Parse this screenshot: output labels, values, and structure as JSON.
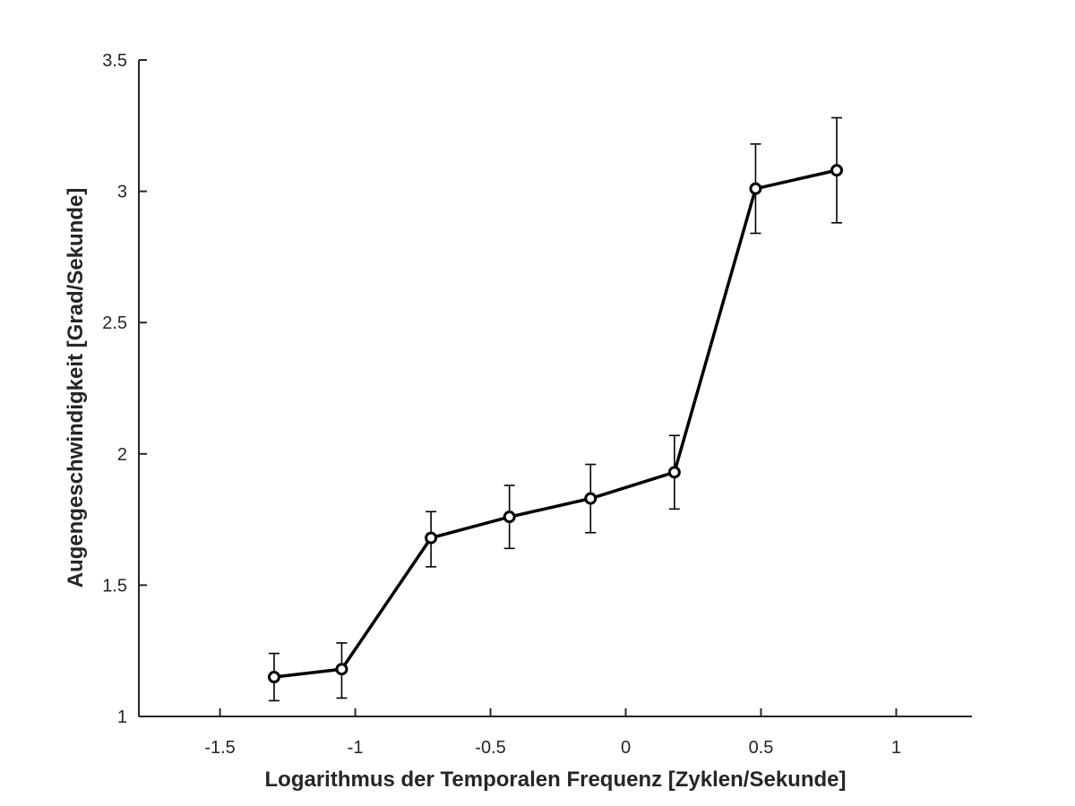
{
  "chart_data": {
    "type": "line",
    "title": "",
    "xlabel": "Logarithmus der Temporalen Frequenz [Zyklen/Sekunde]",
    "ylabel": "Augengeschwindigkeit [Grad/Sekunde]",
    "xlim": [
      -1.8,
      1.28
    ],
    "ylim": [
      1,
      3.5
    ],
    "x_ticks": [
      -1.5,
      -1,
      -0.5,
      0,
      0.5,
      1
    ],
    "x_tick_labels": [
      "-1.5",
      "-1",
      "-0.5",
      "0",
      "0.5",
      "1"
    ],
    "y_ticks": [
      1,
      1.5,
      2,
      2.5,
      3,
      3.5
    ],
    "y_tick_labels": [
      "1",
      "1.5",
      "2",
      "2.5",
      "3",
      "3.5"
    ],
    "grid": false,
    "legend": false,
    "series": [
      {
        "color": "#000000",
        "marker": "circle",
        "x": [
          -1.3,
          -1.05,
          -0.72,
          -0.43,
          -0.13,
          0.18,
          0.48,
          0.78
        ],
        "y": [
          1.15,
          1.18,
          1.68,
          1.76,
          1.83,
          1.93,
          3.01,
          3.08
        ],
        "err_upper": [
          1.24,
          1.28,
          1.78,
          1.88,
          1.96,
          2.07,
          3.18,
          3.28
        ],
        "err_lower": [
          1.06,
          1.07,
          1.57,
          1.64,
          1.7,
          1.79,
          2.84,
          2.88
        ]
      }
    ]
  }
}
